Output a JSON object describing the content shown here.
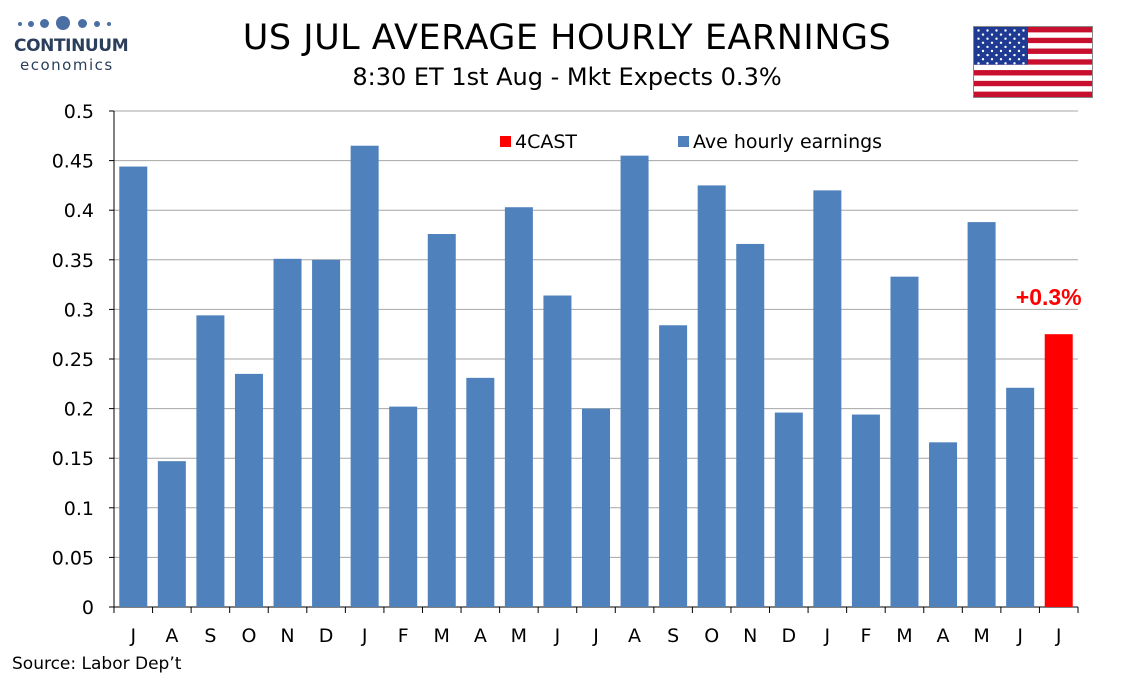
{
  "logo": {
    "name": "CONTINUUM",
    "tagline": "economics"
  },
  "header": {
    "title": "US JUL AVERAGE HOURLY EARNINGS",
    "subtitle": "8:30 ET 1st Aug - Mkt Expects 0.3%"
  },
  "flag": {
    "name": "us-flag",
    "colors": {
      "red": "#c8102e",
      "white": "#ffffff",
      "blue": "#1f3a93"
    }
  },
  "footer": {
    "source": "Source: Labor Dep’t"
  },
  "colors": {
    "actual": "#4f81bd",
    "forecast": "#ff0000",
    "grid": "#a6a6a6"
  },
  "chart_data": {
    "type": "bar",
    "categories": [
      "J",
      "A",
      "S",
      "O",
      "N",
      "D",
      "J",
      "F",
      "M",
      "A",
      "M",
      "J",
      "J",
      "A",
      "S",
      "O",
      "N",
      "D",
      "J",
      "F",
      "M",
      "A",
      "M",
      "J",
      "J"
    ],
    "series": [
      {
        "name": "Ave hourly earnings",
        "color": "#4f81bd",
        "values": [
          0.444,
          0.147,
          0.294,
          0.235,
          0.351,
          0.35,
          0.465,
          0.202,
          0.376,
          0.231,
          0.403,
          0.314,
          0.2,
          0.455,
          0.284,
          0.425,
          0.366,
          0.196,
          0.42,
          0.194,
          0.333,
          0.166,
          0.388,
          0.221,
          null
        ]
      },
      {
        "name": "4CAST",
        "color": "#ff0000",
        "values": [
          null,
          null,
          null,
          null,
          null,
          null,
          null,
          null,
          null,
          null,
          null,
          null,
          null,
          null,
          null,
          null,
          null,
          null,
          null,
          null,
          null,
          null,
          null,
          null,
          0.275
        ]
      }
    ],
    "yticks": [
      "0",
      "0.05",
      "0.1",
      "0.15",
      "0.2",
      "0.25",
      "0.3",
      "0.35",
      "0.4",
      "0.45",
      "0.5"
    ],
    "ylim": [
      0,
      0.5
    ],
    "grid": true,
    "legend": "top",
    "annotation": {
      "text": "+0.3%",
      "category_index": 24,
      "color": "#ff0000"
    },
    "xlabel": "",
    "ylabel": ""
  }
}
